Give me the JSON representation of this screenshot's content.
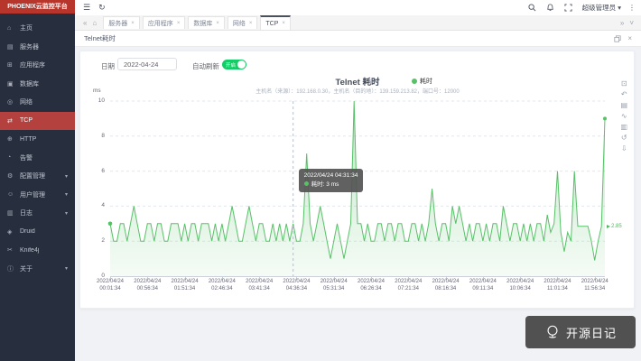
{
  "app": {
    "title": "PHOENIX云监控平台"
  },
  "sidebar": {
    "items": [
      {
        "id": "home",
        "icon": "⌂",
        "label": "主页"
      },
      {
        "id": "server",
        "icon": "▤",
        "label": "服务器"
      },
      {
        "id": "application",
        "icon": "⊞",
        "label": "应用程序"
      },
      {
        "id": "database",
        "icon": "▣",
        "label": "数据库"
      },
      {
        "id": "network",
        "icon": "◎",
        "label": "网络"
      },
      {
        "id": "tcp",
        "icon": "⇄",
        "label": "TCP",
        "active": true
      },
      {
        "id": "http",
        "icon": "⊕",
        "label": "HTTP"
      },
      {
        "id": "alarm",
        "icon": "◔",
        "label": "告警"
      },
      {
        "id": "config",
        "icon": "⚙",
        "label": "配置管理",
        "caret": true
      },
      {
        "id": "user",
        "icon": "☺",
        "label": "用户管理",
        "caret": true
      },
      {
        "id": "log",
        "icon": "▥",
        "label": "日志",
        "caret": true
      },
      {
        "id": "druid",
        "icon": "◈",
        "label": "Druid"
      },
      {
        "id": "knife4j",
        "icon": "✂",
        "label": "Knife4j"
      },
      {
        "id": "about",
        "icon": "ⓘ",
        "label": "关于",
        "caret": true
      }
    ]
  },
  "topbar": {
    "menu_icon": "☰",
    "refresh_icon": "↻",
    "user": "超级管理员",
    "user_caret": "▾",
    "more_icon": "⋮"
  },
  "tabs": {
    "back_icon": "«",
    "home_icon": "⌂",
    "close_icon": "×",
    "forward_icon": "»",
    "collapse_icon": "˅",
    "items": [
      {
        "label": "服务器"
      },
      {
        "label": "应用程序"
      },
      {
        "label": "数据库"
      },
      {
        "label": "网络"
      },
      {
        "label": "TCP",
        "active": true
      }
    ]
  },
  "subbar": {
    "title": "Telnet耗时",
    "close_icon": "×"
  },
  "filter": {
    "date_label": "日期",
    "date_value": "2022-04-24",
    "autorefresh_label": "自动刷新",
    "toggle_state_label": "开启"
  },
  "chart_data": {
    "type": "area",
    "title": "Telnet 耗时",
    "subtitle": "主机名（来源）：192.168.0.30，主机名（目的地）：139.159.213.82，端口号：12000",
    "legend": [
      {
        "name": "耗时",
        "color": "#58c168"
      }
    ],
    "unit": "ms",
    "ylim": [
      0,
      10
    ],
    "y_ticks": [
      0,
      2,
      4,
      6,
      8,
      10
    ],
    "grid": true,
    "x_tick_date": "2022/04/24",
    "x_tick_times": [
      "00:01:34",
      "00:56:34",
      "01:51:34",
      "02:46:34",
      "03:41:34",
      "04:36:34",
      "05:31:34",
      "06:26:34",
      "07:21:34",
      "08:16:34",
      "09:11:34",
      "10:06:34",
      "11:01:34",
      "11:56:34"
    ],
    "tick_every": 11,
    "start_time": "00:01:34",
    "interval_min": 5,
    "values": [
      3,
      2,
      2,
      3,
      3,
      2,
      3,
      4,
      3,
      2,
      2,
      3,
      3,
      2,
      3,
      3,
      2,
      2,
      3,
      3,
      3,
      2,
      3,
      2,
      3,
      3,
      2,
      3,
      3,
      3,
      2,
      3,
      2,
      3,
      2,
      3,
      4,
      3,
      2,
      2,
      3,
      4,
      3,
      2,
      3,
      3,
      2,
      2,
      3,
      2,
      3,
      2,
      3,
      2,
      3,
      2,
      2,
      3,
      7,
      3,
      2,
      3,
      4,
      3,
      2,
      1,
      2,
      3,
      2,
      1,
      2,
      3,
      10,
      3,
      3,
      2,
      3,
      2,
      2,
      3,
      3,
      2,
      3,
      3,
      2,
      3,
      3,
      2,
      2,
      3,
      3,
      2,
      3,
      2,
      3,
      5,
      3,
      2,
      3,
      3,
      2,
      4,
      3,
      4,
      3,
      2,
      3,
      2,
      3,
      3,
      2,
      3,
      2,
      3,
      3,
      2,
      4,
      3,
      2,
      3,
      3,
      2,
      3,
      2,
      3,
      2,
      3,
      3,
      2,
      3.5,
      2.5,
      3,
      6,
      2.5,
      1.4,
      2.5,
      2,
      6,
      2.85,
      2.85,
      2.85,
      2.85,
      2,
      0.9,
      2,
      2.85,
      9
    ],
    "average": 2.85,
    "average_label": "2.85",
    "tooltip": {
      "index": 54,
      "title": "2022/04/24 04:31:34",
      "series": "耗时",
      "value": "3 ms"
    },
    "toolbox": [
      {
        "name": "area-zoom",
        "glyph": "⊡"
      },
      {
        "name": "zoom-restore",
        "glyph": "↶"
      },
      {
        "name": "data-view",
        "glyph": "▤"
      },
      {
        "name": "switch-line",
        "glyph": "∿"
      },
      {
        "name": "switch-bar",
        "glyph": "▥"
      },
      {
        "name": "restore",
        "glyph": "↺"
      },
      {
        "name": "save-image",
        "glyph": "⇩"
      }
    ]
  },
  "watermark": {
    "text": "开源日记"
  },
  "colors": {
    "series_green": "#58c168",
    "toggle_green": "#13ce66",
    "sidebar_bg": "#272e3e",
    "sidebar_header_red": "#b7352b",
    "active_item_red": "#b5413f"
  }
}
